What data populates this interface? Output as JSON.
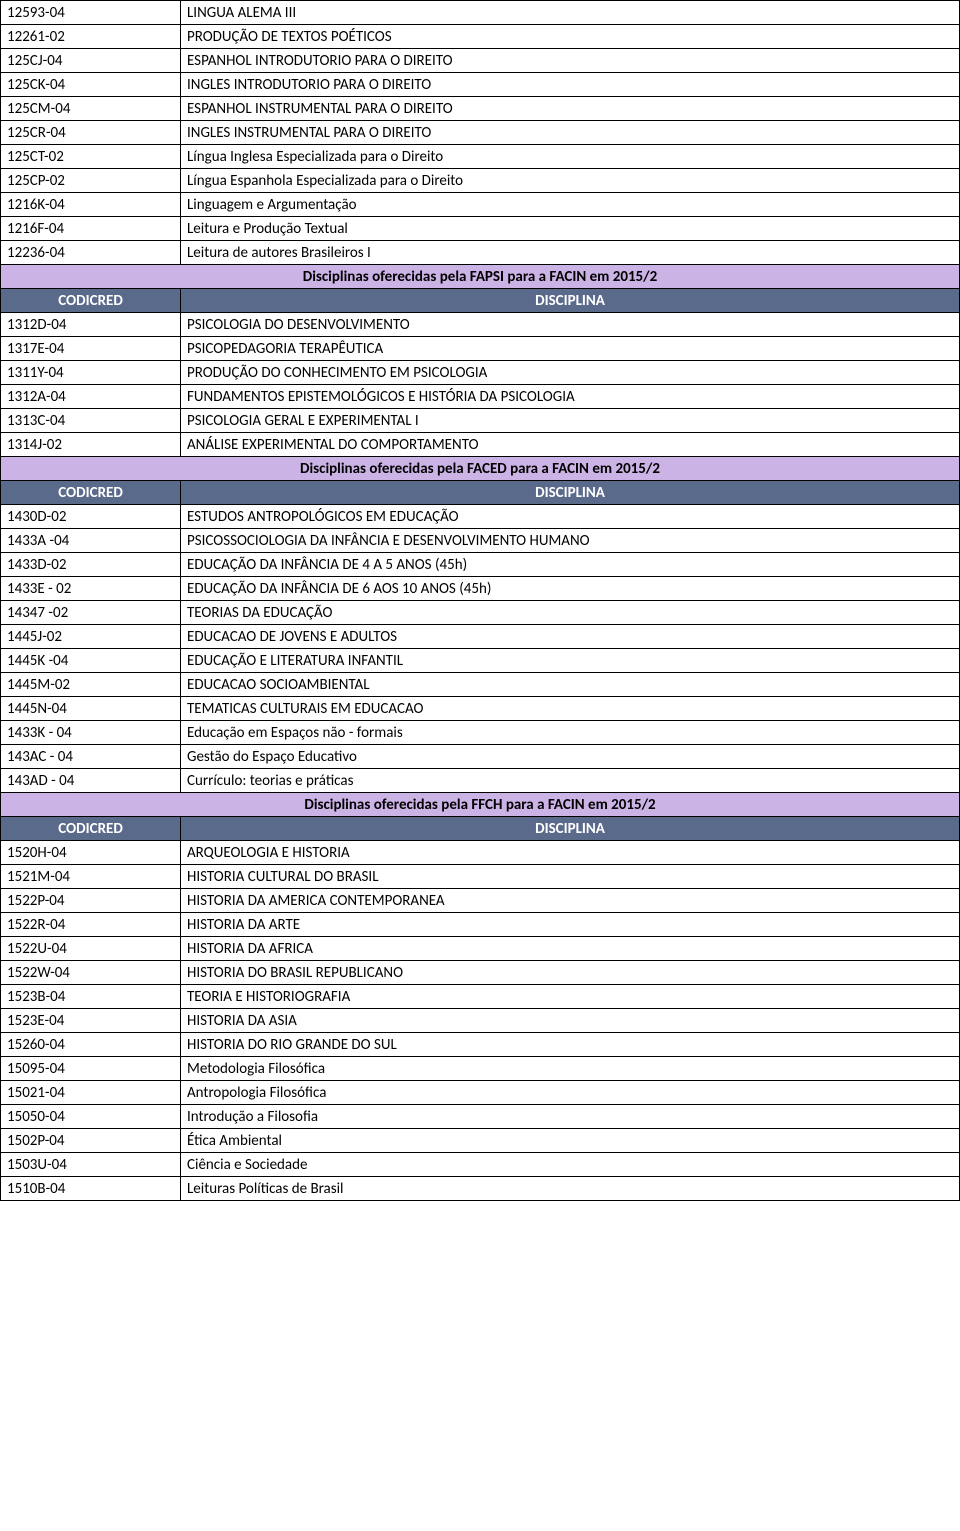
{
  "colors": {
    "section_bg": "#ccb3e6",
    "header_bg": "#5a6a8a",
    "header_fg": "#ffffff",
    "border": "#000000",
    "text": "#000000"
  },
  "columns": {
    "code_header": "CODICRED",
    "desc_header": "DISCIPLINA"
  },
  "top_rows": [
    {
      "code": "12593-04",
      "desc": "LINGUA ALEMA III"
    },
    {
      "code": "12261-02",
      "desc": "PRODUÇÃO DE TEXTOS POÉTICOS"
    },
    {
      "code": "125CJ-04",
      "desc": "ESPANHOL INTRODUTORIO PARA O DIREITO"
    },
    {
      "code": "125CK-04",
      "desc": "INGLES INTRODUTORIO PARA O DIREITO"
    },
    {
      "code": "125CM-04",
      "desc": "ESPANHOL INSTRUMENTAL PARA O DIREITO"
    },
    {
      "code": "125CR-04",
      "desc": "INGLES INSTRUMENTAL PARA O DIREITO"
    },
    {
      "code": "125CT-02",
      "desc": "Língua Inglesa Especializada para o Direito"
    },
    {
      "code": "125CP-02",
      "desc": "Língua Espanhola Especializada para o Direito"
    },
    {
      "code": "1216K-04",
      "desc": "Linguagem e Argumentação"
    },
    {
      "code": "1216F-04",
      "desc": "Leitura e Produção Textual"
    },
    {
      "code": "12236-04",
      "desc": "Leitura de autores Brasileiros I"
    }
  ],
  "sections": [
    {
      "title": "Disciplinas oferecidas pela FAPSI para a FACIN em 2015/2",
      "rows": [
        {
          "code": "1312D-04",
          "desc": "PSICOLOGIA DO DESENVOLVIMENTO"
        },
        {
          "code": "1317E-04",
          "desc": "PSICOPEDAGORIA TERAPÊUTICA"
        },
        {
          "code": "1311Y-04",
          "desc": "PRODUÇÃO DO CONHECIMENTO EM PSICOLOGIA"
        },
        {
          "code": "1312A-04",
          "desc": "FUNDAMENTOS EPISTEMOLÓGICOS E HISTÓRIA DA PSICOLOGIA"
        },
        {
          "code": "1313C-04",
          "desc": "PSICOLOGIA GERAL E EXPERIMENTAL I"
        },
        {
          "code": "1314J-02",
          "desc": "ANÁLISE EXPERIMENTAL DO COMPORTAMENTO"
        }
      ]
    },
    {
      "title": "Disciplinas oferecidas pela FACED para a FACIN em  2015/2",
      "rows": [
        {
          "code": "1430D-02",
          "desc": "ESTUDOS ANTROPOLÓGICOS EM EDUCAÇÃO"
        },
        {
          "code": "1433A -04",
          "desc": "PSICOSSOCIOLOGIA DA INFÂNCIA E DESENVOLVIMENTO HUMANO"
        },
        {
          "code": "1433D-02",
          "desc": "EDUCAÇÃO DA INFÂNCIA DE 4 A 5 ANOS (45h)"
        },
        {
          "code": "1433E - 02",
          "desc": "EDUCAÇÃO DA INFÂNCIA DE 6 AOS 10 ANOS (45h)"
        },
        {
          "code": "14347 -02",
          "desc": "TEORIAS DA EDUCAÇÃO"
        },
        {
          "code": "1445J-02",
          "desc": "EDUCACAO DE JOVENS E ADULTOS"
        },
        {
          "code": "1445K -04",
          "desc": "EDUCAÇÃO E LITERATURA INFANTIL"
        },
        {
          "code": "1445M-02",
          "desc": "EDUCACAO SOCIOAMBIENTAL"
        },
        {
          "code": "1445N-04",
          "desc": "TEMATICAS CULTURAIS EM EDUCACAO"
        },
        {
          "code": "1433K - 04",
          "desc": "Educação em Espaços não - formais"
        },
        {
          "code": "143AC - 04",
          "desc": "Gestão do Espaço Educativo"
        },
        {
          "code": "143AD - 04",
          "desc": "Currículo: teorias e práticas"
        }
      ]
    },
    {
      "title": "Disciplinas oferecidas pela FFCH para a FACIN em 2015/2",
      "rows": [
        {
          "code": "1520H-04",
          "desc": "ARQUEOLOGIA E HISTORIA"
        },
        {
          "code": "1521M-04",
          "desc": "HISTORIA CULTURAL DO BRASIL"
        },
        {
          "code": "1522P-04",
          "desc": "HISTORIA DA AMERICA CONTEMPORANEA"
        },
        {
          "code": "1522R-04",
          "desc": "HISTORIA DA ARTE"
        },
        {
          "code": "1522U-04",
          "desc": "HISTORIA DA AFRICA"
        },
        {
          "code": "1522W-04",
          "desc": "HISTORIA DO BRASIL REPUBLICANO"
        },
        {
          "code": "1523B-04",
          "desc": "TEORIA E HISTORIOGRAFIA"
        },
        {
          "code": "1523E-04",
          "desc": "HISTORIA DA ASIA"
        },
        {
          "code": "15260-04",
          "desc": "HISTORIA DO RIO GRANDE DO SUL"
        },
        {
          "code": "15095-04",
          "desc": "Metodologia Filosófica"
        },
        {
          "code": "15021-04",
          "desc": "Antropologia Filosófica"
        },
        {
          "code": "15050-04",
          "desc": "Introdução a Filosofia"
        },
        {
          "code": "1502P-04",
          "desc": "Ética Ambiental"
        },
        {
          "code": "1503U-04",
          "desc": "Ciência e Sociedade"
        },
        {
          "code": "1510B-04",
          "desc": "Leituras Políticas de Brasil"
        }
      ]
    }
  ]
}
